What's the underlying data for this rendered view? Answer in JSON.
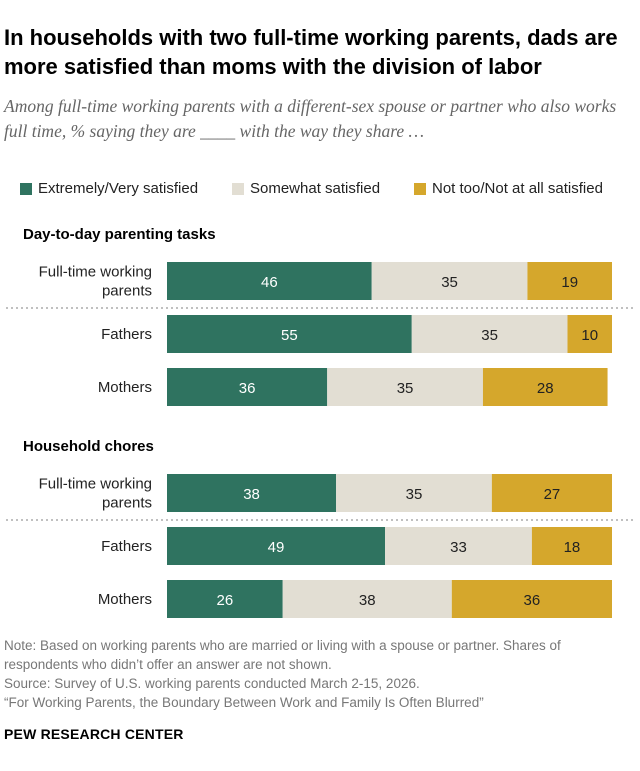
{
  "title": "In households with two full-time working parents, dads are more satisfied than moms with the division of labor",
  "subtitle": "Among full-time working parents with a different-sex spouse or partner who also works full time, % saying they are ____ with the way they share …",
  "colors": {
    "very": "#2f7360",
    "somewhat": "#e2ded3",
    "not": "#d5a72c"
  },
  "chart_data": {
    "type": "bar",
    "orientation": "horizontal",
    "stacked": true,
    "legend": [
      "Extremely/Very satisfied",
      "Somewhat satisfied",
      "Not too/Not at all satisfied"
    ],
    "legend_placement": "top",
    "groups": [
      {
        "title": "Day-to-day parenting tasks",
        "rows": [
          {
            "label": [
              "Full-time working",
              "parents"
            ],
            "values": [
              46,
              35,
              19
            ]
          },
          {
            "label": [
              "Fathers"
            ],
            "values": [
              55,
              35,
              10
            ]
          },
          {
            "label": [
              "Mothers"
            ],
            "values": [
              36,
              35,
              28
            ]
          }
        ]
      },
      {
        "title": "Household chores",
        "rows": [
          {
            "label": [
              "Full-time working",
              "parents"
            ],
            "values": [
              38,
              35,
              27
            ]
          },
          {
            "label": [
              "Fathers"
            ],
            "values": [
              49,
              33,
              18
            ]
          },
          {
            "label": [
              "Mothers"
            ],
            "values": [
              26,
              38,
              36
            ]
          }
        ]
      }
    ]
  },
  "notes": {
    "note": "Note: Based on working parents who are married or living with a spouse or partner. Shares of respondents who didn’t offer an answer are not shown.",
    "source": "Source: Survey of U.S. working parents conducted March 2-15, 2026.",
    "report": "“For Working Parents, the Boundary Between Work and Family Is Often Blurred”"
  },
  "brand": "PEW RESEARCH CENTER"
}
